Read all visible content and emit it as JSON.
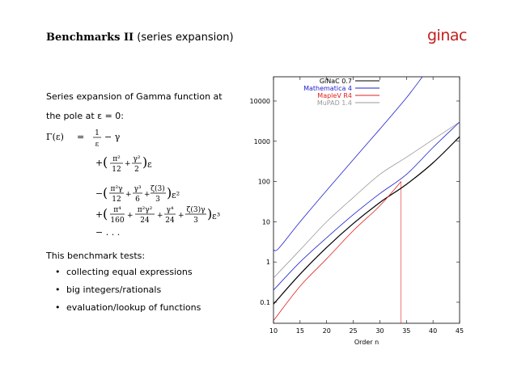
{
  "slide": {
    "title_bold": "Benchmarks II",
    "title_rest": " (series expansion)",
    "logo": "ginac",
    "desc_line1": "Series expansion of Gamma function at",
    "desc_line2": "the pole at ε = 0:",
    "formula": {
      "lhs": "Γ(ε)",
      "eq": "=",
      "t1_num": "1",
      "t1_den": "ε",
      "t1_tail": "− γ",
      "t2_pre": "+",
      "t2_a_num": "π²",
      "t2_a_den": "12",
      "t2_plus": "+",
      "t2_b_num": "γ²",
      "t2_b_den": "2",
      "t2_suffix": "ε",
      "t3_pre": "−",
      "t3_a_num": "π²γ",
      "t3_a_den": "12",
      "t3_plus1": "+",
      "t3_b_num": "γ³",
      "t3_b_den": "6",
      "t3_plus2": "+",
      "t3_c_num": "ζ(3)",
      "t3_c_den": "3",
      "t3_suffix": "ε²",
      "t4_pre": "+",
      "t4_a_num": "π⁴",
      "t4_a_den": "160",
      "t4_plus1": "+",
      "t4_b_num": "π²γ²",
      "t4_b_den": "24",
      "t4_plus2": "+",
      "t4_c_num": "γ⁴",
      "t4_c_den": "24",
      "t4_plus3": "+",
      "t4_d_num": "ζ(3)γ",
      "t4_d_den": "3",
      "t4_suffix": "ε³",
      "tail": "− . . ."
    },
    "bench_heading": "This benchmark tests:",
    "bullets": [
      "collecting equal expressions",
      "big integers/rationals",
      "evaluation/lookup of functions"
    ]
  },
  "colors": {
    "logo": "#c0201c",
    "ginac": "#000000",
    "mathematica": "#2020d0",
    "maple": "#e02020",
    "mupad": "#999999"
  },
  "chart_data": {
    "type": "line",
    "title": "",
    "xlabel": "Order n",
    "ylabel": "",
    "xlim": [
      10,
      45
    ],
    "ylim": [
      0.03,
      40000
    ],
    "yscale": "log",
    "xticks": [
      "10",
      "15",
      "20",
      "25",
      "30",
      "35",
      "40",
      "45"
    ],
    "yticks": [
      "0.1",
      "1",
      "10",
      "100",
      "1000",
      "10000"
    ],
    "legend": "top-left",
    "annotation": "vertical line at n = 34",
    "vline_x": 34,
    "series": [
      {
        "name": "GiNaC 0.7",
        "color": "#000000",
        "x": [
          10,
          15,
          20,
          25,
          30,
          35,
          40,
          45
        ],
        "y": [
          0.09,
          0.5,
          2.3,
          9,
          30,
          85,
          290,
          1300
        ]
      },
      {
        "name": "Mathematica 4",
        "color": "#2020d0",
        "x": [
          10,
          11,
          15,
          20,
          25,
          30,
          35,
          38
        ],
        "y": [
          2,
          2.2,
          10,
          60,
          350,
          2000,
          12000,
          40000
        ]
      },
      {
        "name": "MapleV R4",
        "color": "#e02020",
        "x": [
          10,
          15,
          20,
          25,
          30,
          34
        ],
        "y": [
          0.035,
          0.25,
          1.2,
          6,
          25,
          100
        ]
      },
      {
        "name": "MuPAD 1.4",
        "color": "#999999",
        "x": [
          10,
          15,
          20,
          25,
          30,
          35,
          40,
          45
        ],
        "y": [
          0.4,
          2,
          10,
          40,
          150,
          400,
          1100,
          3000
        ]
      },
      {
        "name": "",
        "color": "#2020d0",
        "x": [
          10,
          15,
          20,
          25,
          30,
          35,
          40,
          45
        ],
        "y": [
          0.2,
          1,
          4,
          15,
          50,
          150,
          700,
          3000
        ]
      }
    ]
  }
}
